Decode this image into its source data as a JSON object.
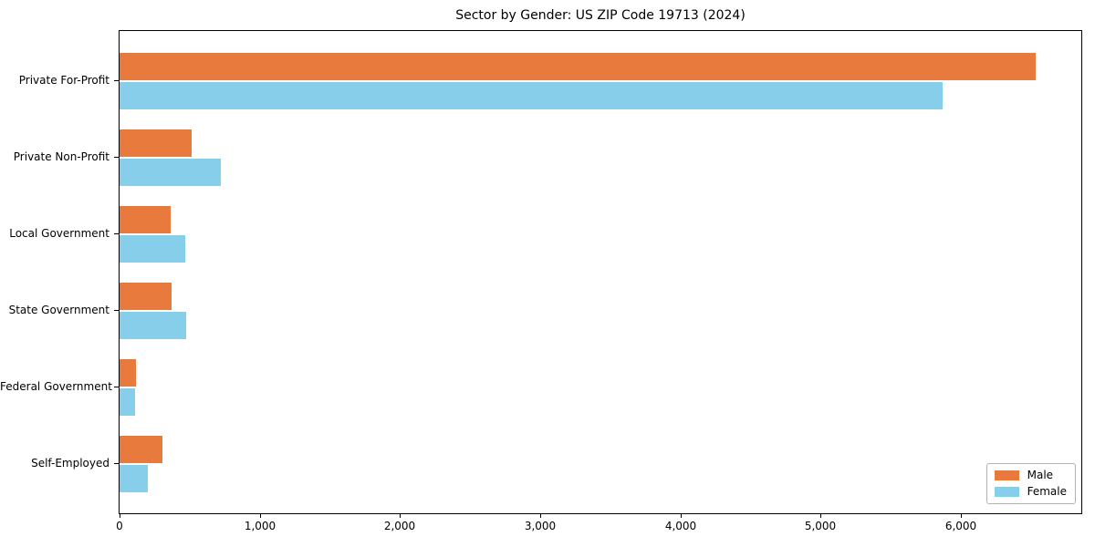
{
  "title": "Sector by Gender: US ZIP Code 19713 (2024)",
  "colors": {
    "male": "#e97a3d",
    "female": "#87ceeb",
    "axis": "#000000",
    "background": "#ffffff",
    "legend_border": "#b3b3b3"
  },
  "chart_data": {
    "type": "bar",
    "orientation": "horizontal",
    "title": "Sector by Gender: US ZIP Code 19713 (2024)",
    "categories": [
      "Private For-Profit",
      "Private Non-Profit",
      "Local Government",
      "State Government",
      "Federal Government",
      "Self-Employed"
    ],
    "series": [
      {
        "name": "Male",
        "color": "#e97a3d",
        "values": [
          6533,
          514,
          365,
          371,
          115,
          307
        ]
      },
      {
        "name": "Female",
        "color": "#87ceeb",
        "values": [
          5868,
          722,
          466,
          477,
          110,
          202
        ]
      }
    ],
    "xlabel": "",
    "ylabel": "",
    "xlim": [
      0,
      6860
    ],
    "x_ticks": [
      0,
      1000,
      2000,
      3000,
      4000,
      5000,
      6000
    ],
    "x_tick_labels": [
      "0",
      "1,000",
      "2,000",
      "3,000",
      "4,000",
      "5,000",
      "6,000"
    ],
    "grid": false,
    "legend_position": "lower right"
  }
}
